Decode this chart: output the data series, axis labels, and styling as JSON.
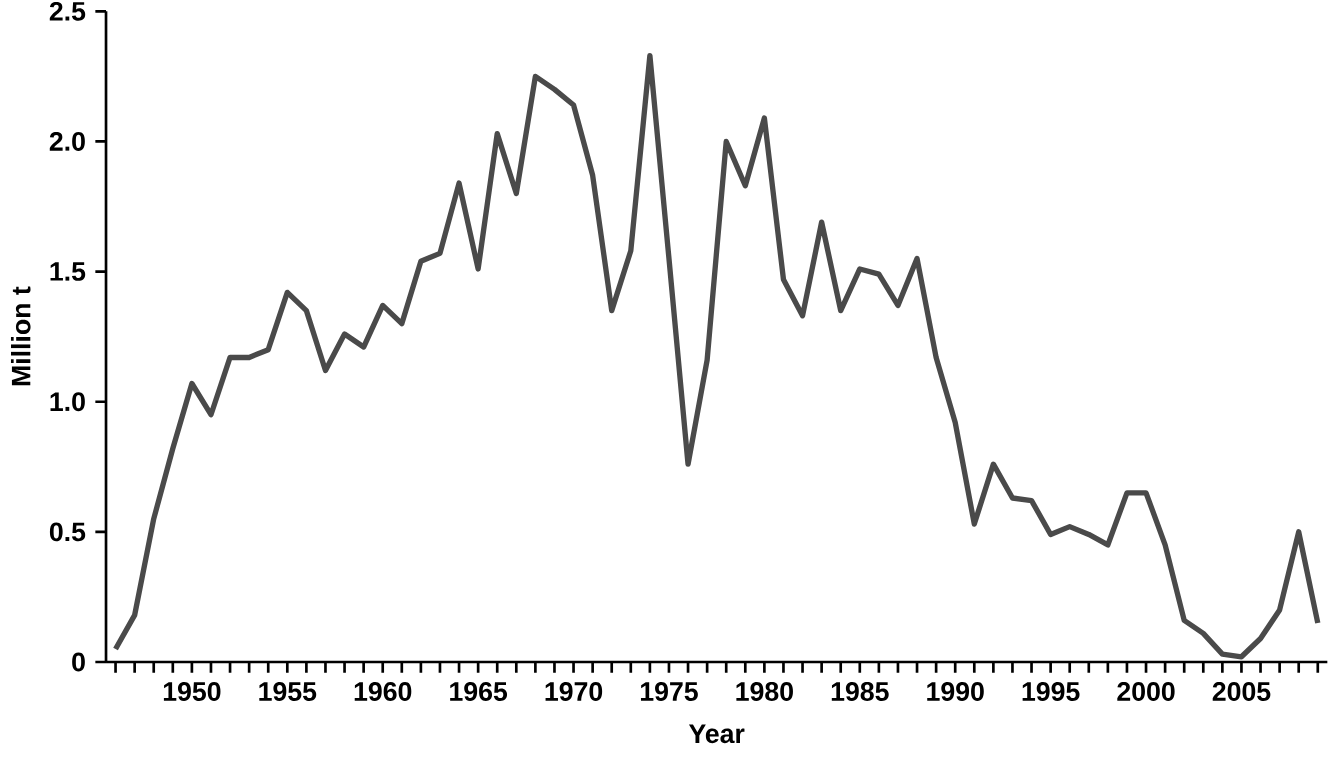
{
  "chart_data": {
    "type": "line",
    "xlabel": "Year",
    "ylabel": "Million t",
    "x": [
      1946,
      1947,
      1948,
      1949,
      1950,
      1951,
      1952,
      1953,
      1954,
      1955,
      1956,
      1957,
      1958,
      1959,
      1960,
      1961,
      1962,
      1963,
      1964,
      1965,
      1966,
      1967,
      1968,
      1969,
      1970,
      1971,
      1972,
      1973,
      1974,
      1975,
      1976,
      1977,
      1978,
      1979,
      1980,
      1981,
      1982,
      1983,
      1984,
      1985,
      1986,
      1987,
      1988,
      1989,
      1990,
      1991,
      1992,
      1993,
      1994,
      1995,
      1996,
      1997,
      1998,
      1999,
      2000,
      2001,
      2002,
      2003,
      2004,
      2005,
      2006,
      2007,
      2008,
      2009
    ],
    "series": [
      {
        "color": "#4a4a4a",
        "values": [
          0.05,
          0.18,
          0.55,
          0.82,
          1.07,
          0.95,
          1.17,
          1.17,
          1.2,
          1.42,
          1.35,
          1.12,
          1.26,
          1.21,
          1.37,
          1.3,
          1.54,
          1.57,
          1.84,
          1.51,
          2.03,
          1.8,
          2.25,
          2.2,
          2.14,
          1.87,
          1.35,
          1.58,
          2.33,
          1.55,
          0.76,
          1.16,
          2.0,
          1.83,
          2.09,
          1.47,
          1.33,
          1.69,
          1.35,
          1.51,
          1.49,
          1.37,
          1.55,
          1.17,
          0.92,
          0.53,
          0.76,
          0.63,
          0.62,
          0.49,
          0.52,
          0.49,
          0.45,
          0.65,
          0.65,
          0.45,
          0.16,
          0.11,
          0.03,
          0.02,
          0.09,
          0.2,
          0.5,
          0.15
        ]
      }
    ],
    "xlim": [
      1945.5,
      2009.5
    ],
    "ylim": [
      0,
      2.5
    ],
    "xticks": [
      {
        "value": 1946,
        "label": null
      },
      {
        "value": 1947,
        "label": null
      },
      {
        "value": 1948,
        "label": null
      },
      {
        "value": 1949,
        "label": null
      },
      1950,
      {
        "value": 1951,
        "label": null
      },
      {
        "value": 1952,
        "label": null
      },
      {
        "value": 1953,
        "label": null
      },
      {
        "value": 1954,
        "label": null
      },
      1955,
      {
        "value": 1956,
        "label": null
      },
      {
        "value": 1957,
        "label": null
      },
      {
        "value": 1958,
        "label": null
      },
      {
        "value": 1959,
        "label": null
      },
      1960,
      {
        "value": 1961,
        "label": null
      },
      {
        "value": 1962,
        "label": null
      },
      {
        "value": 1963,
        "label": null
      },
      {
        "value": 1964,
        "label": null
      },
      1965,
      {
        "value": 1966,
        "label": null
      },
      {
        "value": 1967,
        "label": null
      },
      {
        "value": 1968,
        "label": null
      },
      {
        "value": 1969,
        "label": null
      },
      1970,
      {
        "value": 1971,
        "label": null
      },
      {
        "value": 1972,
        "label": null
      },
      {
        "value": 1973,
        "label": null
      },
      {
        "value": 1974,
        "label": null
      },
      1975,
      {
        "value": 1976,
        "label": null
      },
      {
        "value": 1977,
        "label": null
      },
      {
        "value": 1978,
        "label": null
      },
      {
        "value": 1979,
        "label": null
      },
      1980,
      {
        "value": 1981,
        "label": null
      },
      {
        "value": 1982,
        "label": null
      },
      {
        "value": 1983,
        "label": null
      },
      {
        "value": 1984,
        "label": null
      },
      1985,
      {
        "value": 1986,
        "label": null
      },
      {
        "value": 1987,
        "label": null
      },
      {
        "value": 1988,
        "label": null
      },
      {
        "value": 1989,
        "label": null
      },
      1990,
      {
        "value": 1991,
        "label": null
      },
      {
        "value": 1992,
        "label": null
      },
      {
        "value": 1993,
        "label": null
      },
      {
        "value": 1994,
        "label": null
      },
      1995,
      {
        "value": 1996,
        "label": null
      },
      {
        "value": 1997,
        "label": null
      },
      {
        "value": 1998,
        "label": null
      },
      {
        "value": 1999,
        "label": null
      },
      2000,
      {
        "value": 2001,
        "label": null
      },
      {
        "value": 2002,
        "label": null
      },
      {
        "value": 2003,
        "label": null
      },
      {
        "value": 2004,
        "label": null
      },
      2005,
      {
        "value": 2006,
        "label": null
      },
      {
        "value": 2007,
        "label": null
      },
      {
        "value": 2008,
        "label": null
      },
      {
        "value": 2009,
        "label": null
      }
    ],
    "yticks": [
      0,
      0.5,
      {
        "value": 1,
        "label": "1.0"
      },
      {
        "value": 1.5,
        "label": "1.5"
      },
      {
        "value": 2,
        "label": "2.0"
      },
      {
        "value": 2.5,
        "label": "2.5"
      }
    ],
    "line_style": "solid"
  }
}
